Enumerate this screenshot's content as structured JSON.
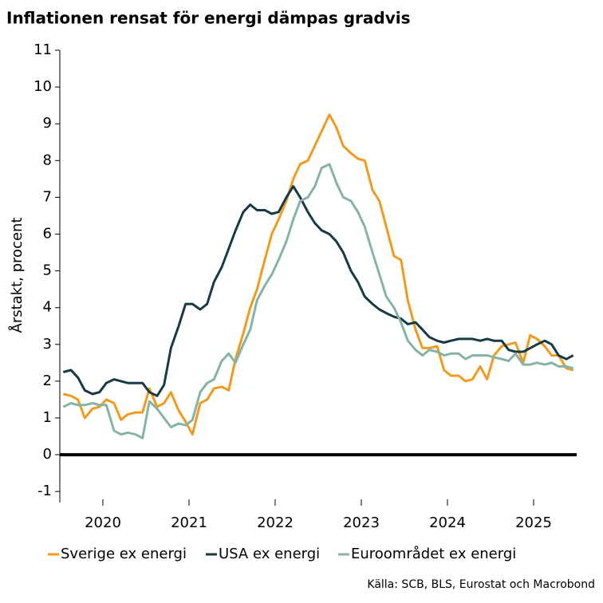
{
  "chart_data": {
    "type": "line",
    "title": "Inflationen rensat för energi dämpas gradvis",
    "y_label": "Årstakt, procent",
    "source": "Källa: SCB, BLS, Eurostat och Macrobond",
    "x": [
      2020.04,
      2020.13,
      2020.21,
      2020.29,
      2020.38,
      2020.46,
      2020.54,
      2020.63,
      2020.71,
      2020.79,
      2020.88,
      2020.96,
      2021.04,
      2021.13,
      2021.21,
      2021.29,
      2021.38,
      2021.46,
      2021.54,
      2021.63,
      2021.71,
      2021.79,
      2021.88,
      2021.96,
      2022.04,
      2022.13,
      2022.21,
      2022.29,
      2022.38,
      2022.46,
      2022.54,
      2022.63,
      2022.71,
      2022.79,
      2022.88,
      2022.96,
      2023.04,
      2023.13,
      2023.21,
      2023.29,
      2023.38,
      2023.46,
      2023.54,
      2023.63,
      2023.71,
      2023.79,
      2023.88,
      2023.96,
      2024.04,
      2024.13,
      2024.21,
      2024.29,
      2024.38,
      2024.46,
      2024.54,
      2024.63,
      2024.71,
      2024.79,
      2024.88,
      2024.96,
      2025.04,
      2025.13,
      2025.21,
      2025.29,
      2025.38,
      2025.46,
      2025.54,
      2025.63,
      2025.71,
      2025.79,
      2025.88,
      2025.96
    ],
    "series": [
      {
        "name": "Sverige ex energi",
        "color": "#f29a1f",
        "values": [
          1.65,
          1.6,
          1.5,
          1.0,
          1.25,
          1.3,
          1.5,
          1.4,
          0.95,
          1.1,
          1.15,
          1.15,
          1.8,
          1.3,
          1.4,
          1.7,
          1.2,
          0.9,
          0.55,
          1.4,
          1.5,
          1.8,
          1.85,
          1.75,
          2.6,
          3.3,
          4.0,
          4.5,
          5.3,
          6.0,
          6.4,
          6.9,
          7.5,
          7.9,
          8.0,
          8.4,
          8.8,
          9.25,
          8.9,
          8.4,
          8.2,
          8.05,
          8.0,
          7.2,
          6.9,
          6.2,
          5.4,
          5.3,
          4.2,
          3.4,
          2.9,
          2.9,
          2.95,
          2.3,
          2.15,
          2.15,
          2.0,
          2.05,
          2.4,
          2.05,
          2.7,
          2.95,
          3.0,
          3.05,
          2.5,
          3.25,
          3.15,
          2.95,
          2.7,
          2.7,
          2.35,
          2.3
        ]
      },
      {
        "name": "USA ex energi",
        "color": "#173b45",
        "values": [
          2.25,
          2.3,
          2.1,
          1.75,
          1.65,
          1.7,
          1.95,
          2.05,
          2.0,
          1.95,
          1.95,
          1.95,
          1.7,
          1.6,
          1.9,
          2.9,
          3.5,
          4.1,
          4.1,
          3.95,
          4.1,
          4.7,
          5.1,
          5.6,
          6.1,
          6.6,
          6.8,
          6.65,
          6.65,
          6.55,
          6.6,
          7.0,
          7.3,
          7.0,
          6.6,
          6.3,
          6.1,
          6.0,
          5.8,
          5.5,
          5.0,
          4.7,
          4.3,
          4.1,
          3.95,
          3.85,
          3.75,
          3.7,
          3.55,
          3.6,
          3.4,
          3.2,
          3.1,
          3.05,
          3.1,
          3.15,
          3.15,
          3.15,
          3.1,
          3.15,
          3.1,
          3.1,
          2.85,
          2.8,
          2.8,
          2.9,
          3.0,
          3.1,
          3.0,
          2.7,
          2.6,
          2.7
        ]
      },
      {
        "name": "Euroområdet ex energi",
        "color": "#86b3a6",
        "values": [
          1.3,
          1.4,
          1.35,
          1.35,
          1.4,
          1.35,
          1.35,
          0.65,
          0.55,
          0.6,
          0.55,
          0.45,
          1.45,
          1.25,
          1.0,
          0.75,
          0.85,
          0.8,
          0.95,
          1.7,
          1.95,
          2.05,
          2.55,
          2.75,
          2.5,
          3.0,
          3.4,
          4.2,
          4.6,
          4.9,
          5.3,
          5.8,
          6.4,
          6.9,
          7.0,
          7.3,
          7.8,
          7.9,
          7.4,
          7.0,
          6.9,
          6.6,
          6.2,
          5.5,
          4.9,
          4.3,
          4.0,
          3.6,
          3.1,
          2.85,
          2.7,
          2.85,
          2.8,
          2.7,
          2.75,
          2.75,
          2.6,
          2.7,
          2.7,
          2.7,
          2.65,
          2.6,
          2.55,
          2.75,
          2.45,
          2.45,
          2.5,
          2.45,
          2.5,
          2.4,
          2.4,
          2.35
        ]
      }
    ],
    "xlim": [
      2020,
      2026
    ],
    "xticks": [
      {
        "value": 2020.5,
        "label": "2020"
      },
      {
        "value": 2021.5,
        "label": "2021"
      },
      {
        "value": 2022.5,
        "label": "2022"
      },
      {
        "value": 2023.5,
        "label": "2023"
      },
      {
        "value": 2024.5,
        "label": "2024"
      },
      {
        "value": 2025.5,
        "label": "2025"
      }
    ],
    "ylim": [
      -1.3,
      11
    ],
    "yticks": [
      -1,
      0,
      1,
      2,
      3,
      4,
      5,
      6,
      7,
      8,
      9,
      10,
      11
    ],
    "zero_line": true
  }
}
